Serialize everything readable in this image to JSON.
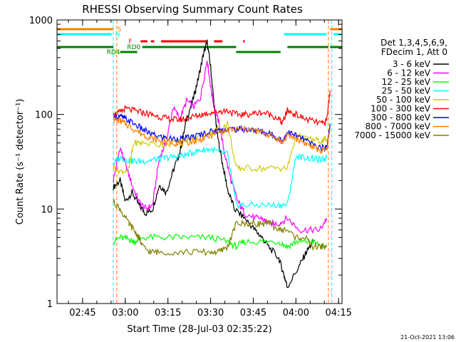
{
  "chart_data": {
    "type": "line",
    "title": "RHESSI Observing Summary Count Rates",
    "xlabel": "Start Time (28-Jul-03 02:35:22)",
    "ylabel": "Count Rate (s⁻¹ detector⁻¹)",
    "yscale": "log",
    "ylim": [
      1,
      1000
    ],
    "xlim": [
      2.6,
      4.27
    ],
    "x_ticks": [
      {
        "v": 2.75,
        "label": "02:45"
      },
      {
        "v": 3.0,
        "label": "03:00"
      },
      {
        "v": 3.25,
        "label": "03:15"
      },
      {
        "v": 3.5,
        "label": "03:30"
      },
      {
        "v": 3.75,
        "label": "03:45"
      },
      {
        "v": 4.0,
        "label": "04:00"
      },
      {
        "v": 4.25,
        "label": "04:15"
      }
    ],
    "y_ticks": [
      {
        "v": 1,
        "label": "1"
      },
      {
        "v": 10,
        "label": "10"
      },
      {
        "v": 100,
        "label": "100"
      },
      {
        "v": 1000,
        "label": "1000"
      }
    ],
    "legend_header": [
      "Det 1,3,4,5,6,9,",
      "FDecim 1, Att 0"
    ],
    "series": [
      {
        "name": "3 - 6 keV",
        "color": "#000000",
        "x": [
          2.93,
          2.97,
          3.0,
          3.04,
          3.08,
          3.12,
          3.16,
          3.2,
          3.24,
          3.28,
          3.32,
          3.36,
          3.4,
          3.43,
          3.46,
          3.48,
          3.5,
          3.52,
          3.54,
          3.57,
          3.6,
          3.64,
          3.7,
          3.76,
          3.8,
          3.84,
          3.9,
          3.93,
          3.95,
          4.02,
          4.06,
          4.1
        ],
        "y": [
          17,
          20,
          12,
          15,
          11,
          9,
          10,
          18,
          15,
          25,
          40,
          90,
          150,
          250,
          450,
          580,
          320,
          130,
          60,
          30,
          16,
          10,
          8,
          6,
          5,
          4,
          3,
          2,
          1.5,
          2.5,
          3.5,
          4.5
        ]
      },
      {
        "name": "6 - 12 keV",
        "color": "#ff00ff",
        "x": [
          2.93,
          2.97,
          3.0,
          3.04,
          3.08,
          3.12,
          3.16,
          3.2,
          3.24,
          3.28,
          3.32,
          3.36,
          3.4,
          3.44,
          3.48,
          3.5,
          3.52,
          3.55,
          3.58,
          3.62,
          3.66,
          3.7,
          3.76,
          3.8,
          3.84,
          3.9,
          3.95,
          4.02,
          4.08,
          4.14,
          4.18
        ],
        "y": [
          20,
          45,
          30,
          18,
          12,
          10,
          11,
          35,
          50,
          120,
          90,
          140,
          120,
          150,
          380,
          200,
          120,
          80,
          40,
          20,
          12,
          9,
          8,
          8,
          7,
          7,
          8,
          6,
          6,
          6,
          8
        ]
      },
      {
        "name": "12 - 25 keV",
        "color": "#00ff00",
        "x": [
          2.93,
          2.97,
          3.02,
          3.05,
          3.1,
          3.2,
          3.3,
          3.4,
          3.5,
          3.6,
          3.65,
          3.7,
          3.8,
          3.9,
          3.95,
          4.0,
          4.05,
          4.1,
          4.15,
          4.18
        ],
        "y": [
          4.5,
          5,
          4.8,
          4.5,
          5,
          5,
          5,
          5,
          5,
          4.5,
          4,
          4.5,
          4.5,
          4.5,
          4,
          4.5,
          4.5,
          4.5,
          4,
          4
        ]
      },
      {
        "name": "25 - 50 keV",
        "color": "#00ffff",
        "x": [
          2.93,
          2.97,
          3.02,
          3.05,
          3.1,
          3.15,
          3.2,
          3.25,
          3.3,
          3.35,
          3.4,
          3.45,
          3.5,
          3.55,
          3.6,
          3.65,
          3.7,
          3.8,
          3.9,
          3.95,
          4.0,
          4.05,
          4.1,
          4.15,
          4.18
        ],
        "y": [
          30,
          35,
          33,
          32,
          32,
          33,
          34,
          35,
          36,
          37,
          40,
          42,
          43,
          40,
          38,
          11,
          11,
          11,
          11,
          11,
          36,
          35,
          34,
          33,
          35
        ]
      },
      {
        "name": "50 - 100 keV",
        "color": "#cccc00",
        "x": [
          2.93,
          2.97,
          3.02,
          3.05,
          3.1,
          3.2,
          3.3,
          3.4,
          3.5,
          3.55,
          3.6,
          3.65,
          3.7,
          3.8,
          3.9,
          3.95,
          4.0,
          4.05,
          4.1,
          4.15,
          4.18
        ],
        "y": [
          28,
          25,
          26,
          50,
          50,
          48,
          50,
          55,
          65,
          70,
          80,
          27,
          27,
          27,
          27,
          27,
          60,
          56,
          54,
          52,
          55
        ]
      },
      {
        "name": "100 - 300 keV",
        "color": "#ff0000",
        "x": [
          2.93,
          2.97,
          3.0,
          3.05,
          3.1,
          3.15,
          3.2,
          3.25,
          3.3,
          3.35,
          3.4,
          3.45,
          3.5,
          3.55,
          3.6,
          3.65,
          3.7,
          3.75,
          3.8,
          3.85,
          3.9,
          3.92,
          3.95,
          4.0,
          4.05,
          4.1,
          4.15,
          4.18,
          4.2
        ],
        "y": [
          100,
          105,
          115,
          110,
          105,
          100,
          95,
          90,
          88,
          90,
          95,
          100,
          105,
          108,
          110,
          100,
          100,
          102,
          105,
          100,
          90,
          80,
          110,
          100,
          90,
          85,
          80,
          85,
          180
        ]
      },
      {
        "name": "300 - 800 keV",
        "color": "#0000ff",
        "x": [
          2.93,
          2.97,
          3.0,
          3.05,
          3.1,
          3.15,
          3.2,
          3.25,
          3.3,
          3.35,
          3.4,
          3.45,
          3.5,
          3.55,
          3.6,
          3.65,
          3.7,
          3.75,
          3.8,
          3.85,
          3.9,
          3.92,
          3.95,
          4.0,
          4.05,
          4.1,
          4.15,
          4.18,
          4.2
        ],
        "y": [
          95,
          95,
          90,
          80,
          70,
          62,
          58,
          56,
          55,
          56,
          58,
          62,
          66,
          68,
          70,
          70,
          70,
          68,
          66,
          62,
          56,
          52,
          65,
          60,
          54,
          48,
          44,
          45,
          80
        ]
      },
      {
        "name": "800 - 7000 keV",
        "color": "#ff8000",
        "x": [
          2.93,
          2.97,
          3.0,
          3.05,
          3.1,
          3.15,
          3.2,
          3.25,
          3.3,
          3.35,
          3.4,
          3.45,
          3.5,
          3.55,
          3.6,
          3.65,
          3.7,
          3.75,
          3.8,
          3.85,
          3.9,
          3.92,
          3.95,
          4.0,
          4.05,
          4.1,
          4.15,
          4.18,
          4.2
        ],
        "y": [
          88,
          86,
          80,
          70,
          62,
          56,
          53,
          51,
          50,
          50,
          52,
          55,
          60,
          65,
          68,
          69,
          70,
          68,
          65,
          60,
          55,
          50,
          60,
          56,
          50,
          45,
          41,
          42,
          70
        ]
      },
      {
        "name": "7000 - 15000 keV",
        "color": "#808000",
        "x": [
          2.93,
          2.97,
          3.02,
          3.05,
          3.08,
          3.1,
          3.15,
          3.2,
          3.3,
          3.4,
          3.5,
          3.55,
          3.6,
          3.65,
          3.7,
          3.75,
          3.8,
          3.85,
          3.9,
          3.95,
          4.0,
          4.05,
          4.1,
          4.15,
          4.18
        ],
        "y": [
          12,
          10,
          7,
          6,
          5,
          4,
          3.5,
          3.5,
          3.5,
          3.5,
          3.5,
          3.5,
          4,
          7,
          7,
          7,
          7,
          7,
          6,
          6,
          5,
          5,
          4,
          4,
          4
        ]
      }
    ],
    "flag_lines": [
      {
        "label": "S",
        "color": "#ff8000",
        "level": 1
      },
      {
        "label": "N",
        "color": "#00ffff",
        "level": 2
      },
      {
        "label": "F",
        "color": "#ff0000",
        "level": 3
      },
      {
        "label": "RD0",
        "color": "#008000",
        "level": 4
      },
      {
        "label": "RD4",
        "color": "#008000",
        "level": 5
      }
    ],
    "vertical_markers": [
      {
        "x": 2.93,
        "color": "#00ffff"
      },
      {
        "x": 2.95,
        "color": "#ff8000"
      },
      {
        "x": 4.19,
        "color": "#ff8000"
      },
      {
        "x": 4.21,
        "color": "#00ffff"
      }
    ],
    "footer_date": "21-Oct-2021 13:06"
  }
}
